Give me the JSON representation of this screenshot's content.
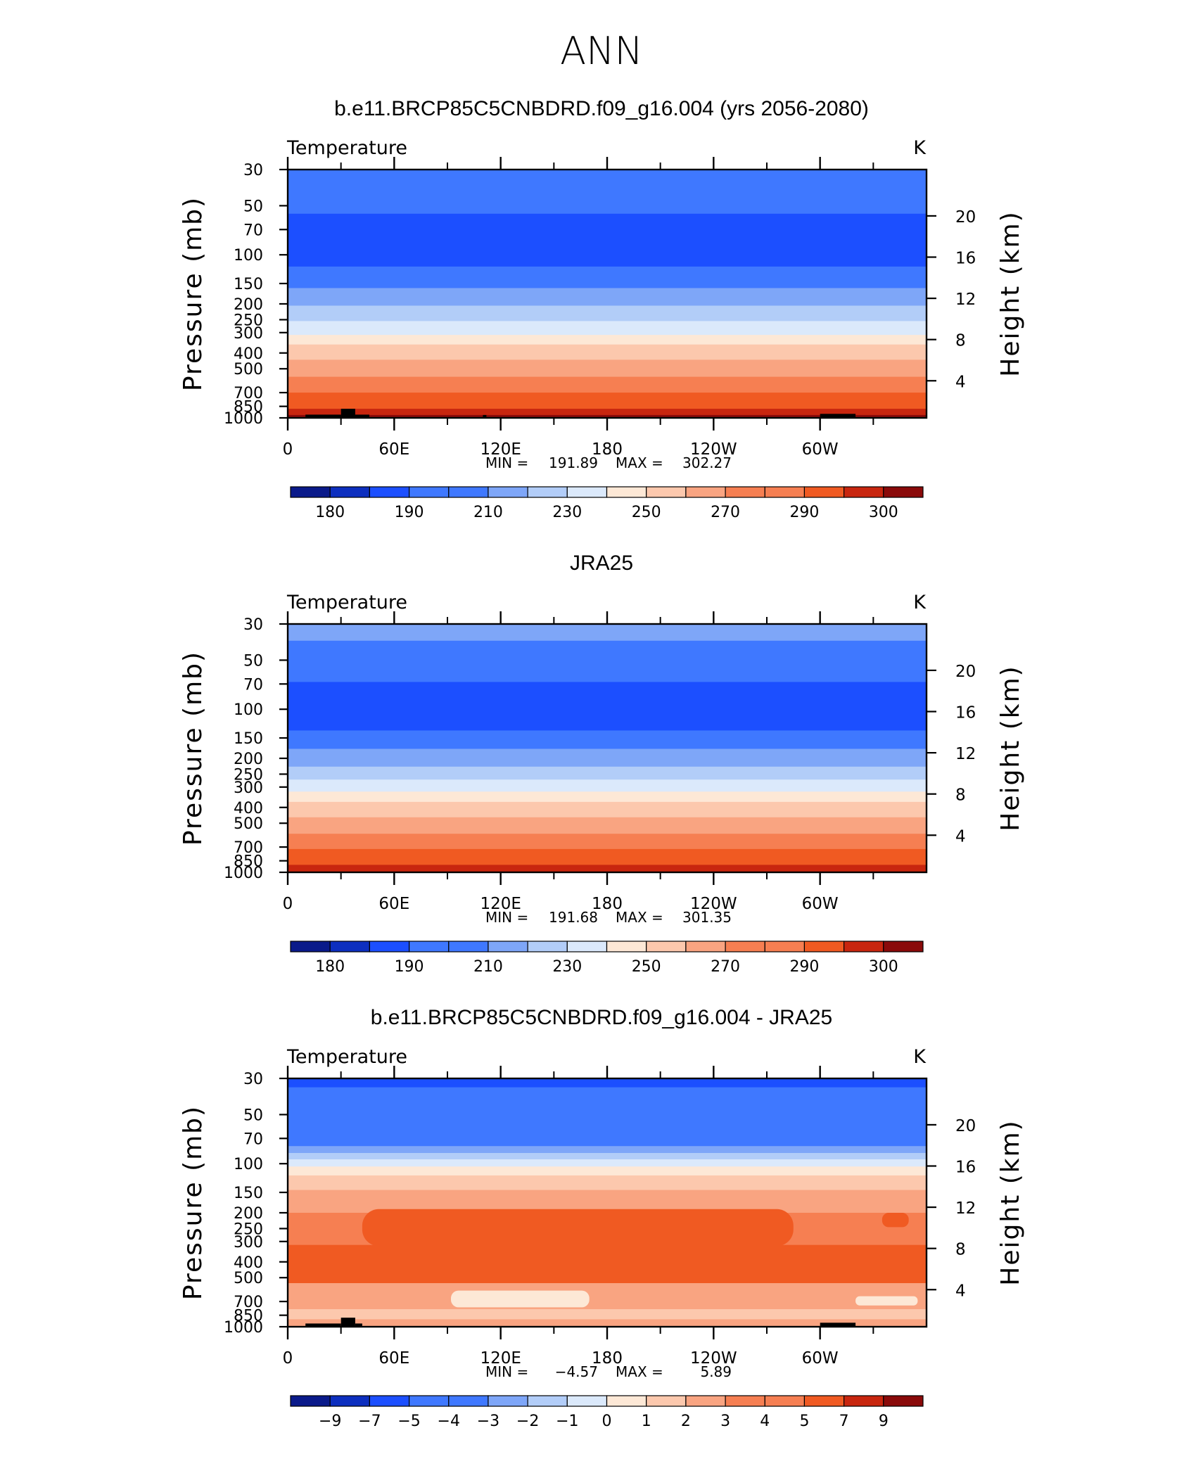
{
  "figure": {
    "title": "ANN"
  },
  "colors": {
    "cold_to_warm": [
      "#0a1a8a",
      "#0d2fbf",
      "#1c4fff",
      "#3f78ff",
      "#7ea6f8",
      "#b2cdf8",
      "#dbe9fb",
      "#fde8d6",
      "#fcc8ad",
      "#f9a481",
      "#f67f52",
      "#f05a22",
      "#c8260f",
      "#8a0a0a"
    ],
    "land_mask": "#000000",
    "frame": "#000000"
  },
  "chart_data": [
    {
      "type": "heatmap",
      "title": "b.e11.BRCP85C5CNBDRD.f09_g16.004 (yrs 2056-2080)",
      "subtitle": "Temperature",
      "units": "K",
      "ylabel": "Pressure (mb)",
      "y2label": "Height (km)",
      "xlabel": "",
      "x_ticks": [
        "0",
        "60E",
        "120E",
        "180",
        "120W",
        "60W"
      ],
      "x_tick_lon": [
        0,
        60,
        120,
        180,
        240,
        300
      ],
      "x_range": [
        0,
        360
      ],
      "y_ticks": [
        "30",
        "50",
        "70",
        "100",
        "150",
        "200",
        "250",
        "300",
        "400",
        "500",
        "700",
        "850",
        "1000"
      ],
      "y_tick_values": [
        30,
        50,
        70,
        100,
        150,
        200,
        250,
        300,
        400,
        500,
        700,
        850,
        1000
      ],
      "y_range": [
        30,
        1000
      ],
      "y_scale": "log",
      "y2_ticks": [
        "4",
        "8",
        "12",
        "16",
        "20"
      ],
      "y2_tick_values": [
        4,
        8,
        12,
        16,
        20
      ],
      "min_label": "MIN =",
      "min": "191.89",
      "max_label": "MAX =",
      "max": "302.27",
      "colorbar_labels": [
        "180",
        "190",
        "210",
        "230",
        "250",
        "270",
        "290",
        "300"
      ],
      "colorbar_label_after_box": [
        1,
        3,
        5,
        7,
        9,
        11,
        13,
        15
      ],
      "bands": [
        {
          "p": 30,
          "box": 3
        },
        {
          "p": 56,
          "box": 2
        },
        {
          "p": 118,
          "box": 3
        },
        {
          "p": 160,
          "box": 4
        },
        {
          "p": 205,
          "box": 5
        },
        {
          "p": 255,
          "box": 6
        },
        {
          "p": 310,
          "box": 7
        },
        {
          "p": 355,
          "box": 8
        },
        {
          "p": 440,
          "box": 9
        },
        {
          "p": 560,
          "box": 10
        },
        {
          "p": 700,
          "box": 11
        },
        {
          "p": 880,
          "box": 12
        },
        {
          "p": 960,
          "box": 13
        }
      ],
      "land": [
        [
          10,
          30,
          955
        ],
        [
          30,
          38,
          880
        ],
        [
          38,
          46,
          955
        ],
        [
          110,
          112,
          960
        ],
        [
          300,
          320,
          945
        ]
      ]
    },
    {
      "type": "heatmap",
      "title": "JRA25",
      "subtitle": "Temperature",
      "units": "K",
      "ylabel": "Pressure (mb)",
      "y2label": "Height (km)",
      "xlabel": "",
      "x_ticks": [
        "0",
        "60E",
        "120E",
        "180",
        "120W",
        "60W"
      ],
      "x_tick_lon": [
        0,
        60,
        120,
        180,
        240,
        300
      ],
      "x_range": [
        0,
        360
      ],
      "y_ticks": [
        "30",
        "50",
        "70",
        "100",
        "150",
        "200",
        "250",
        "300",
        "400",
        "500",
        "700",
        "850",
        "1000"
      ],
      "y_tick_values": [
        30,
        50,
        70,
        100,
        150,
        200,
        250,
        300,
        400,
        500,
        700,
        850,
        1000
      ],
      "y_range": [
        30,
        1000
      ],
      "y_scale": "log",
      "y2_ticks": [
        "4",
        "8",
        "12",
        "16",
        "20"
      ],
      "y2_tick_values": [
        4,
        8,
        12,
        16,
        20
      ],
      "min_label": "MIN =",
      "min": "191.68",
      "max_label": "MAX =",
      "max": "301.35",
      "colorbar_labels": [
        "180",
        "190",
        "210",
        "230",
        "250",
        "270",
        "290",
        "300"
      ],
      "colorbar_label_after_box": [
        1,
        3,
        5,
        7,
        9,
        11,
        13,
        15
      ],
      "bands": [
        {
          "p": 30,
          "box": 4
        },
        {
          "p": 38,
          "box": 3
        },
        {
          "p": 68,
          "box": 2
        },
        {
          "p": 135,
          "box": 3
        },
        {
          "p": 175,
          "box": 4
        },
        {
          "p": 225,
          "box": 5
        },
        {
          "p": 270,
          "box": 6
        },
        {
          "p": 320,
          "box": 7
        },
        {
          "p": 370,
          "box": 8
        },
        {
          "p": 460,
          "box": 9
        },
        {
          "p": 580,
          "box": 10
        },
        {
          "p": 720,
          "box": 11
        },
        {
          "p": 900,
          "box": 12
        }
      ],
      "land": []
    },
    {
      "type": "heatmap",
      "title": "b.e11.BRCP85C5CNBDRD.f09_g16.004 - JRA25",
      "subtitle": "Temperature",
      "units": "K",
      "ylabel": "Pressure (mb)",
      "y2label": "Height (km)",
      "xlabel": "",
      "x_ticks": [
        "0",
        "60E",
        "120E",
        "180",
        "120W",
        "60W"
      ],
      "x_tick_lon": [
        0,
        60,
        120,
        180,
        240,
        300
      ],
      "x_range": [
        0,
        360
      ],
      "y_ticks": [
        "30",
        "50",
        "70",
        "100",
        "150",
        "200",
        "250",
        "300",
        "400",
        "500",
        "700",
        "850",
        "1000"
      ],
      "y_tick_values": [
        30,
        50,
        70,
        100,
        150,
        200,
        250,
        300,
        400,
        500,
        700,
        850,
        1000
      ],
      "y_range": [
        30,
        1000
      ],
      "y_scale": "log",
      "y2_ticks": [
        "4",
        "8",
        "12",
        "16",
        "20"
      ],
      "y2_tick_values": [
        4,
        8,
        12,
        16,
        20
      ],
      "min_label": "MIN =",
      "min": "−4.57",
      "max_label": "MAX =",
      "max": "5.89",
      "colorbar_labels": [
        "−9",
        "−7",
        "−5",
        "−4",
        "−3",
        "−2",
        "−1",
        "0",
        "1",
        "2",
        "3",
        "4",
        "5",
        "7",
        "9"
      ],
      "colorbar_label_after_box": [
        1,
        2,
        3,
        4,
        5,
        6,
        7,
        8,
        9,
        10,
        11,
        12,
        13,
        14,
        15
      ],
      "bands": [
        {
          "p": 30,
          "box": 2
        },
        {
          "p": 34,
          "box": 3
        },
        {
          "p": 78,
          "box": 4
        },
        {
          "p": 86,
          "box": 5
        },
        {
          "p": 94,
          "box": 6
        },
        {
          "p": 104,
          "box": 7
        },
        {
          "p": 118,
          "box": 8
        },
        {
          "p": 145,
          "box": 9
        },
        {
          "p": 200,
          "box": 10
        },
        {
          "p": 315,
          "box": 11
        },
        {
          "p": 540,
          "box": 9
        },
        {
          "p": 780,
          "box": 8
        },
        {
          "p": 900,
          "box": 9
        }
      ],
      "patches": [
        {
          "lon": [
            42,
            285
          ],
          "p": [
            190,
            320
          ],
          "box": 11
        },
        {
          "lon": [
            335,
            350
          ],
          "p": [
            200,
            245
          ],
          "box": 11
        },
        {
          "lon": [
            92,
            170
          ],
          "p": [
            600,
            760
          ],
          "box": 7
        },
        {
          "lon": [
            320,
            355
          ],
          "p": [
            650,
            740
          ],
          "box": 7
        }
      ],
      "land": [
        [
          10,
          30,
          955
        ],
        [
          30,
          38,
          880
        ],
        [
          38,
          42,
          955
        ],
        [
          300,
          320,
          945
        ]
      ]
    }
  ]
}
